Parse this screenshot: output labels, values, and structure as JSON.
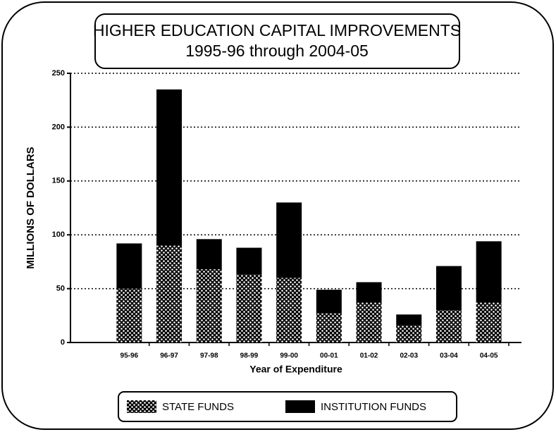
{
  "chart_data": {
    "type": "stacked_bar",
    "title": "HIGHER EDUCATION CAPITAL IMPROVEMENTS",
    "subtitle": "1995-96 through 2004-05",
    "x_label": "Year of Expenditure",
    "y_label": "MILLIONS OF DOLLARS",
    "categories": [
      "95-96",
      "96-97",
      "97-98",
      "98-99",
      "99-00",
      "00-01",
      "01-02",
      "02-03",
      "03-04",
      "04-05"
    ],
    "series": [
      {
        "name": "STATE FUNDS",
        "color": "#000000",
        "pattern": "crosshatch",
        "values": [
          50,
          90,
          68,
          63,
          60,
          27,
          37,
          16,
          30,
          37
        ]
      },
      {
        "name": "INSTITUTION FUNDS",
        "color": "#000000",
        "pattern": "solid",
        "values": [
          42,
          145,
          28,
          25,
          70,
          22,
          19,
          10,
          41,
          57
        ]
      }
    ],
    "ylim": [
      0,
      250
    ],
    "yticks": [
      0,
      50,
      100,
      150,
      200,
      250
    ],
    "grid": true
  }
}
